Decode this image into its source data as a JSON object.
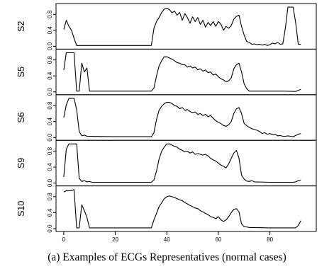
{
  "caption": "(a) Examples of ECGs Representatives (normal cases)",
  "chart_data": {
    "type": "line",
    "title": "",
    "xlabel": "",
    "ylabel": "",
    "xlim": [
      -3,
      98
    ],
    "ylim": [
      0,
      1
    ],
    "x_ticks": [
      0,
      20,
      40,
      60,
      80
    ],
    "y_ticks": [
      "0.0",
      "0.4",
      "0.8"
    ],
    "series": [
      {
        "name": "S2",
        "points": [
          [
            0,
            0.42
          ],
          [
            1,
            0.65
          ],
          [
            2,
            0.5
          ],
          [
            3,
            0.4
          ],
          [
            4,
            0.2
          ],
          [
            5,
            0.02
          ],
          [
            20,
            0.02
          ],
          [
            34,
            0.02
          ],
          [
            35,
            0.45
          ],
          [
            36,
            0.62
          ],
          [
            37,
            0.72
          ],
          [
            38,
            0.85
          ],
          [
            39,
            0.93
          ],
          [
            40,
            0.95
          ],
          [
            41,
            0.92
          ],
          [
            42,
            0.84
          ],
          [
            43,
            0.88
          ],
          [
            44,
            0.78
          ],
          [
            45,
            0.85
          ],
          [
            46,
            0.65
          ],
          [
            47,
            0.82
          ],
          [
            48,
            0.72
          ],
          [
            49,
            0.58
          ],
          [
            50,
            0.74
          ],
          [
            51,
            0.62
          ],
          [
            52,
            0.72
          ],
          [
            53,
            0.55
          ],
          [
            54,
            0.65
          ],
          [
            55,
            0.48
          ],
          [
            56,
            0.6
          ],
          [
            57,
            0.52
          ],
          [
            58,
            0.62
          ],
          [
            59,
            0.5
          ],
          [
            60,
            0.62
          ],
          [
            61,
            0.55
          ],
          [
            62,
            0.4
          ],
          [
            63,
            0.5
          ],
          [
            64,
            0.45
          ],
          [
            65,
            0.52
          ],
          [
            66,
            0.68
          ],
          [
            67,
            0.75
          ],
          [
            68,
            0.78
          ],
          [
            69,
            0.5
          ],
          [
            70,
            0.28
          ],
          [
            71,
            0.12
          ],
          [
            72,
            0.1
          ],
          [
            73,
            0.05
          ],
          [
            74,
            0.06
          ],
          [
            75,
            0.04
          ],
          [
            76,
            0.05
          ],
          [
            77,
            0.03
          ],
          [
            78,
            0.05
          ],
          [
            79,
            0.02
          ],
          [
            80,
            0.04
          ],
          [
            81,
            0.08
          ],
          [
            82,
            0.06
          ],
          [
            83,
            0.1
          ],
          [
            84,
            0.05
          ],
          [
            85,
            0.06
          ],
          [
            86,
            0.45
          ],
          [
            87,
            0.98
          ],
          [
            88,
            0.98
          ],
          [
            89,
            0.98
          ],
          [
            90,
            0.6
          ],
          [
            91,
            0.05
          ],
          [
            92,
            0.05
          ]
        ]
      },
      {
        "name": "S5",
        "points": [
          [
            0,
            0.55
          ],
          [
            1,
            0.98
          ],
          [
            2,
            0.98
          ],
          [
            3,
            0.98
          ],
          [
            4,
            0.98
          ],
          [
            5,
            0.02
          ],
          [
            6,
            0.02
          ],
          [
            7,
            0.72
          ],
          [
            8,
            0.5
          ],
          [
            9,
            0.6
          ],
          [
            10,
            0.02
          ],
          [
            20,
            0.02
          ],
          [
            34,
            0.02
          ],
          [
            35,
            0.1
          ],
          [
            36,
            0.4
          ],
          [
            37,
            0.65
          ],
          [
            38,
            0.78
          ],
          [
            39,
            0.88
          ],
          [
            40,
            0.88
          ],
          [
            41,
            0.85
          ],
          [
            42,
            0.82
          ],
          [
            43,
            0.78
          ],
          [
            44,
            0.73
          ],
          [
            45,
            0.72
          ],
          [
            46,
            0.68
          ],
          [
            47,
            0.68
          ],
          [
            48,
            0.62
          ],
          [
            49,
            0.65
          ],
          [
            50,
            0.6
          ],
          [
            51,
            0.62
          ],
          [
            52,
            0.55
          ],
          [
            53,
            0.58
          ],
          [
            54,
            0.52
          ],
          [
            55,
            0.55
          ],
          [
            56,
            0.48
          ],
          [
            57,
            0.5
          ],
          [
            58,
            0.42
          ],
          [
            59,
            0.45
          ],
          [
            60,
            0.38
          ],
          [
            61,
            0.33
          ],
          [
            62,
            0.3
          ],
          [
            63,
            0.25
          ],
          [
            64,
            0.28
          ],
          [
            65,
            0.35
          ],
          [
            66,
            0.58
          ],
          [
            67,
            0.68
          ],
          [
            68,
            0.72
          ],
          [
            69,
            0.5
          ],
          [
            70,
            0.2
          ],
          [
            71,
            0.08
          ],
          [
            72,
            0.02
          ],
          [
            80,
            0.02
          ],
          [
            85,
            0.02
          ],
          [
            90,
            0.01
          ],
          [
            91,
            0.04
          ],
          [
            92,
            0.06
          ]
        ]
      },
      {
        "name": "S6",
        "points": [
          [
            0,
            0.5
          ],
          [
            1,
            0.82
          ],
          [
            2,
            0.98
          ],
          [
            3,
            0.98
          ],
          [
            4,
            0.98
          ],
          [
            5,
            0.7
          ],
          [
            6,
            0.15
          ],
          [
            7,
            0.04
          ],
          [
            8,
            0.06
          ],
          [
            9,
            0.03
          ],
          [
            20,
            0.02
          ],
          [
            34,
            0.02
          ],
          [
            35,
            0.12
          ],
          [
            36,
            0.45
          ],
          [
            37,
            0.68
          ],
          [
            38,
            0.78
          ],
          [
            39,
            0.85
          ],
          [
            40,
            0.88
          ],
          [
            41,
            0.88
          ],
          [
            42,
            0.85
          ],
          [
            43,
            0.8
          ],
          [
            44,
            0.78
          ],
          [
            45,
            0.72
          ],
          [
            46,
            0.75
          ],
          [
            47,
            0.68
          ],
          [
            48,
            0.7
          ],
          [
            49,
            0.65
          ],
          [
            50,
            0.62
          ],
          [
            51,
            0.64
          ],
          [
            52,
            0.58
          ],
          [
            53,
            0.6
          ],
          [
            54,
            0.55
          ],
          [
            55,
            0.58
          ],
          [
            56,
            0.52
          ],
          [
            57,
            0.55
          ],
          [
            58,
            0.48
          ],
          [
            59,
            0.42
          ],
          [
            60,
            0.38
          ],
          [
            61,
            0.35
          ],
          [
            62,
            0.3
          ],
          [
            63,
            0.28
          ],
          [
            64,
            0.32
          ],
          [
            65,
            0.4
          ],
          [
            66,
            0.6
          ],
          [
            67,
            0.72
          ],
          [
            68,
            0.75
          ],
          [
            69,
            0.6
          ],
          [
            70,
            0.35
          ],
          [
            71,
            0.3
          ],
          [
            72,
            0.25
          ],
          [
            73,
            0.22
          ],
          [
            74,
            0.2
          ],
          [
            75,
            0.18
          ],
          [
            76,
            0.15
          ],
          [
            77,
            0.1
          ],
          [
            78,
            0.12
          ],
          [
            79,
            0.08
          ],
          [
            80,
            0.1
          ],
          [
            81,
            0.07
          ],
          [
            82,
            0.08
          ],
          [
            83,
            0.04
          ],
          [
            84,
            0.05
          ],
          [
            85,
            0.03
          ],
          [
            86,
            0.03
          ],
          [
            87,
            0.04
          ],
          [
            88,
            0.03
          ],
          [
            89,
            0.02
          ],
          [
            90,
            0.05
          ],
          [
            91,
            0.08
          ],
          [
            92,
            0.1
          ]
        ]
      },
      {
        "name": "S9",
        "points": [
          [
            0,
            0.15
          ],
          [
            1,
            0.85
          ],
          [
            2,
            0.98
          ],
          [
            3,
            0.98
          ],
          [
            4,
            0.98
          ],
          [
            5,
            0.98
          ],
          [
            6,
            0.12
          ],
          [
            7,
            0.04
          ],
          [
            8,
            0.06
          ],
          [
            9,
            0.03
          ],
          [
            10,
            0.04
          ],
          [
            11,
            0.02
          ],
          [
            20,
            0.02
          ],
          [
            34,
            0.02
          ],
          [
            35,
            0.08
          ],
          [
            36,
            0.3
          ],
          [
            37,
            0.6
          ],
          [
            38,
            0.8
          ],
          [
            39,
            0.9
          ],
          [
            40,
            0.98
          ],
          [
            41,
            0.98
          ],
          [
            42,
            0.95
          ],
          [
            43,
            0.92
          ],
          [
            44,
            0.9
          ],
          [
            45,
            0.85
          ],
          [
            46,
            0.82
          ],
          [
            47,
            0.78
          ],
          [
            48,
            0.8
          ],
          [
            49,
            0.75
          ],
          [
            50,
            0.78
          ],
          [
            51,
            0.72
          ],
          [
            52,
            0.74
          ],
          [
            53,
            0.72
          ],
          [
            54,
            0.7
          ],
          [
            55,
            0.72
          ],
          [
            56,
            0.68
          ],
          [
            57,
            0.62
          ],
          [
            58,
            0.58
          ],
          [
            59,
            0.55
          ],
          [
            60,
            0.5
          ],
          [
            61,
            0.45
          ],
          [
            62,
            0.42
          ],
          [
            63,
            0.38
          ],
          [
            64,
            0.48
          ],
          [
            65,
            0.62
          ],
          [
            66,
            0.75
          ],
          [
            67,
            0.82
          ],
          [
            68,
            0.62
          ],
          [
            69,
            0.2
          ],
          [
            70,
            0.1
          ],
          [
            71,
            0.05
          ],
          [
            72,
            0.04
          ],
          [
            73,
            0.06
          ],
          [
            74,
            0.03
          ],
          [
            80,
            0.02
          ],
          [
            85,
            0.02
          ],
          [
            89,
            0.02
          ],
          [
            90,
            0.03
          ],
          [
            91,
            0.06
          ],
          [
            92,
            0.08
          ]
        ]
      },
      {
        "name": "S10",
        "points": [
          [
            0,
            0.92
          ],
          [
            1,
            0.95
          ],
          [
            2,
            0.95
          ],
          [
            3,
            0.95
          ],
          [
            4,
            0.98
          ],
          [
            5,
            0.02
          ],
          [
            6,
            0.02
          ],
          [
            7,
            0.6
          ],
          [
            8,
            0.45
          ],
          [
            9,
            0.28
          ],
          [
            10,
            0.02
          ],
          [
            20,
            0.02
          ],
          [
            34,
            0.02
          ],
          [
            35,
            0.22
          ],
          [
            36,
            0.38
          ],
          [
            37,
            0.55
          ],
          [
            38,
            0.65
          ],
          [
            39,
            0.75
          ],
          [
            40,
            0.8
          ],
          [
            41,
            0.82
          ],
          [
            42,
            0.8
          ],
          [
            43,
            0.78
          ],
          [
            44,
            0.75
          ],
          [
            45,
            0.72
          ],
          [
            46,
            0.7
          ],
          [
            47,
            0.65
          ],
          [
            48,
            0.62
          ],
          [
            49,
            0.58
          ],
          [
            50,
            0.55
          ],
          [
            51,
            0.52
          ],
          [
            52,
            0.5
          ],
          [
            53,
            0.45
          ],
          [
            54,
            0.42
          ],
          [
            55,
            0.38
          ],
          [
            56,
            0.35
          ],
          [
            57,
            0.3
          ],
          [
            58,
            0.28
          ],
          [
            59,
            0.25
          ],
          [
            60,
            0.3
          ],
          [
            61,
            0.22
          ],
          [
            62,
            0.18
          ],
          [
            63,
            0.22
          ],
          [
            64,
            0.3
          ],
          [
            65,
            0.4
          ],
          [
            66,
            0.48
          ],
          [
            67,
            0.5
          ],
          [
            68,
            0.42
          ],
          [
            69,
            0.12
          ],
          [
            70,
            0.05
          ],
          [
            71,
            0.04
          ],
          [
            72,
            0.03
          ],
          [
            80,
            0.02
          ],
          [
            85,
            0.02
          ],
          [
            90,
            0.02
          ],
          [
            91,
            0.08
          ],
          [
            92,
            0.2
          ]
        ]
      }
    ]
  }
}
